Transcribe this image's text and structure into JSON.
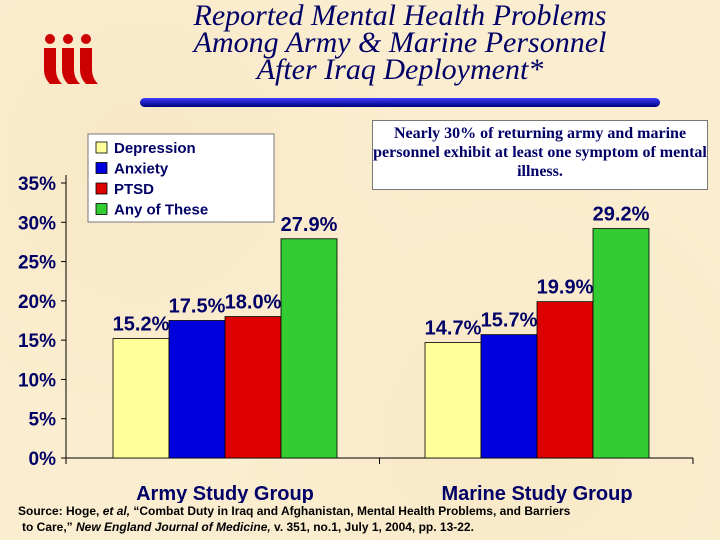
{
  "title_lines": [
    "Reported Mental Health Problems",
    "Among Army & Marine Personnel",
    "After Iraq Deployment*"
  ],
  "logo": {
    "icon": "iii-logo",
    "color": "#cc0000"
  },
  "callout": "Nearly 30% of returning army and marine personnel exhibit at least one symptom of mental illness.",
  "source": {
    "prefix": "Source: Hoge, ",
    "etal": "et al,",
    "mid": " “Combat Duty in Iraq and Afghanistan, Mental Health Problems, and Barriers",
    "line2a": "to Care,” ",
    "journal": "New England Journal of Medicine,",
    "line2b": " v. 351, no.1, July 1, 2004, pp. 13-22."
  },
  "chart_data": {
    "type": "bar",
    "categories": [
      "Army Study Group",
      "Marine Study Group"
    ],
    "series": [
      {
        "name": "Depression",
        "values": [
          15.2,
          14.7
        ],
        "labels": [
          "15.2%",
          "14.7%"
        ],
        "color": "#ffff99"
      },
      {
        "name": "Anxiety",
        "values": [
          17.5,
          15.7
        ],
        "labels": [
          "17.5%",
          "15.7%"
        ],
        "color": "#0000dd"
      },
      {
        "name": "PTSD",
        "values": [
          18.0,
          19.9
        ],
        "labels": [
          "18.0%",
          "19.9%"
        ],
        "color": "#dd0000"
      },
      {
        "name": "Any of These",
        "values": [
          27.9,
          29.2
        ],
        "labels": [
          "27.9%",
          "29.2%"
        ],
        "color": "#33cc33"
      }
    ],
    "yticks": [
      "0%",
      "5%",
      "10%",
      "15%",
      "20%",
      "25%",
      "30%",
      "35%"
    ],
    "ylim": [
      0,
      35
    ],
    "grid": false,
    "legend_position": "top-left"
  }
}
